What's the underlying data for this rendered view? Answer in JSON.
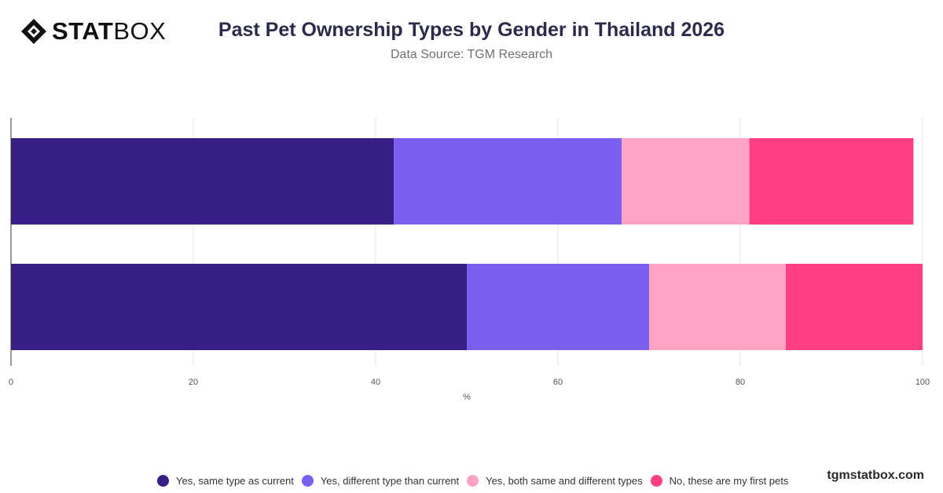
{
  "brand": {
    "logo_bold": "STAT",
    "logo_light": "BOX",
    "watermark": "tgmstatbox.com"
  },
  "header": {
    "title": "Past Pet Ownership Types by Gender in Thailand 2026",
    "subtitle": "Data Source: TGM Research"
  },
  "chart_data": {
    "type": "bar",
    "orientation": "horizontal",
    "stacked": true,
    "title": "Past Pet Ownership Types by Gender in Thailand 2026",
    "subtitle": "Data Source: TGM Research",
    "xlabel": "%",
    "ylabel": "",
    "xlim": [
      0,
      100
    ],
    "x_ticks": [
      0,
      20,
      40,
      60,
      80,
      100
    ],
    "grid": true,
    "legend_position": "bottom",
    "categories": [
      "",
      ""
    ],
    "series": [
      {
        "name": "Yes, same type as current",
        "color": "#371f85",
        "values": [
          42,
          50
        ]
      },
      {
        "name": "Yes, different type than current",
        "color": "#7b5ff0",
        "values": [
          25,
          20
        ]
      },
      {
        "name": "Yes, both same and different types",
        "color": "#ffa3c4",
        "values": [
          14,
          15
        ]
      },
      {
        "name": "No, these are my first pets",
        "color": "#ff3f81",
        "values": [
          18,
          15
        ]
      }
    ]
  }
}
